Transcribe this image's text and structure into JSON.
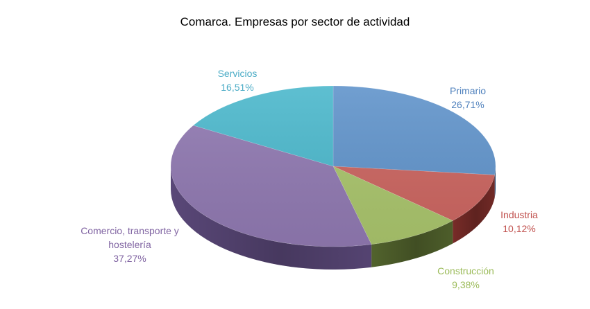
{
  "chart_data": {
    "type": "pie",
    "title": "Comarca. Empresas por sector de actividad",
    "start_angle_deg": 0,
    "direction": "clockwise",
    "slices": [
      {
        "name": "Primario",
        "label_lines": [
          "Primario"
        ],
        "value": 26.71,
        "value_label": "26,71%",
        "color": "#6194CB",
        "side_color": "#3D6290",
        "label_color": "#4F81BD"
      },
      {
        "name": "Industria",
        "label_lines": [
          "Industria"
        ],
        "value": 10.12,
        "value_label": "10,12%",
        "color": "#CB6560",
        "side_color": "#7E2E2A",
        "label_color": "#C0504D"
      },
      {
        "name": "Construcción",
        "label_lines": [
          "Construcción"
        ],
        "value": 9.38,
        "value_label": "9,38%",
        "color": "#A9C46C",
        "side_color": "#56682F",
        "label_color": "#9BBB59"
      },
      {
        "name": "Comercio, transporte y hostelería",
        "label_lines": [
          "Comercio, transporte y",
          "hostelería"
        ],
        "value": 37.27,
        "value_label": "37,27%",
        "color": "#9079B1",
        "side_color": "#5E4B7E",
        "label_color": "#8064A2"
      },
      {
        "name": "Servicios",
        "label_lines": [
          "Servicios"
        ],
        "value": 16.51,
        "value_label": "16,51%",
        "color": "#4CB8CC",
        "side_color": "#2A7E8D",
        "label_color": "#4BACC6"
      }
    ],
    "legend": "none",
    "data_labels": "outside"
  }
}
